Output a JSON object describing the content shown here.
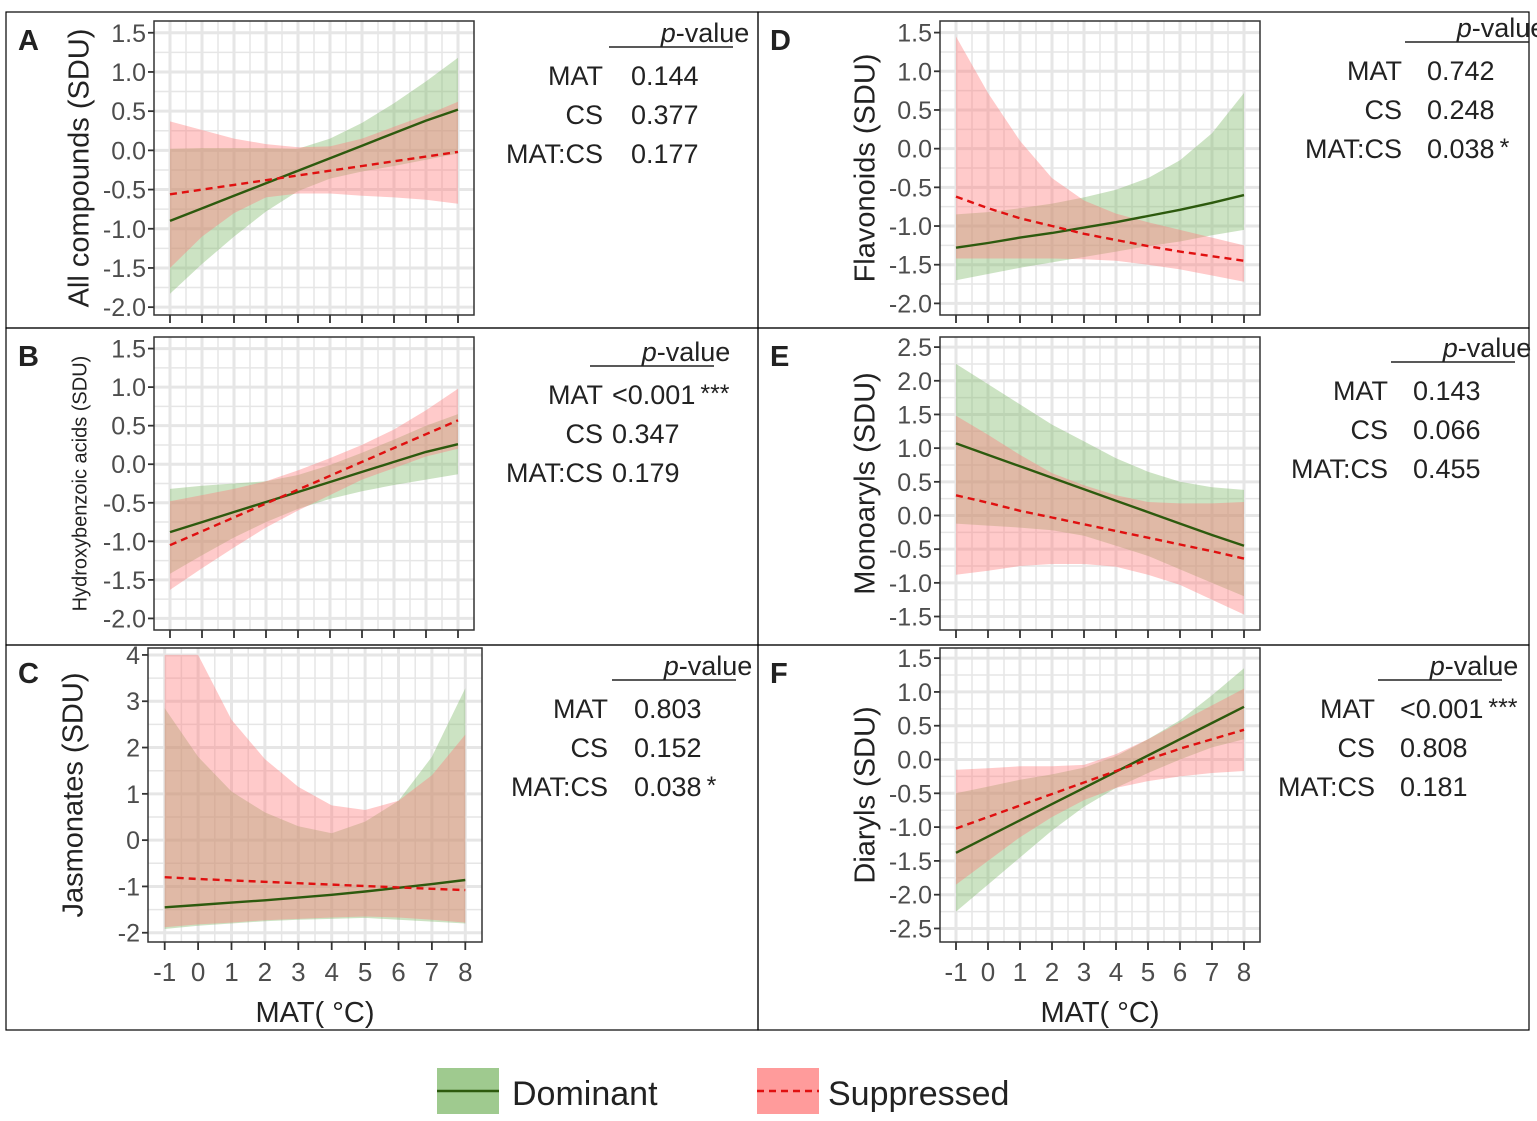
{
  "colors": {
    "dominant_line": "#2d5a0e",
    "dominant_band": "#7fb86a",
    "suppressed_line": "#e01010",
    "suppressed_band": "#ff7a7a",
    "grid": "#e6e6e6",
    "frame": "#333333",
    "text": "#222222",
    "tick_text": "#4d4d4d"
  },
  "figure": {
    "xlabel": "MAT( °C)",
    "pvalue_header": {
      "italic": "p",
      "rest": "-value"
    }
  },
  "legend": {
    "items": [
      {
        "label": "Dominant",
        "series": "dominant",
        "line_style": "solid"
      },
      {
        "label": "Suppressed",
        "series": "suppressed",
        "line_style": "dashed"
      }
    ]
  },
  "chart_data": [
    {
      "panel": "A",
      "type": "line",
      "ylabel": "All compounds (SDU)",
      "xlim": [
        -1.5,
        8.5
      ],
      "x_ticks": [
        -1,
        0,
        1,
        2,
        3,
        4,
        5,
        6,
        7,
        8
      ],
      "x_tick_labels_shown": false,
      "ylim": [
        -2.1,
        1.65
      ],
      "y_ticks": [
        -2.0,
        -1.5,
        -1.0,
        -0.5,
        0.0,
        0.5,
        1.0,
        1.5
      ],
      "y_tick_labels": [
        "-2.0",
        "-1.5",
        "-1.0",
        "-0.5",
        "0.0",
        "0.5",
        "1.0",
        "1.5"
      ],
      "x": [
        -1,
        0,
        1,
        2,
        3,
        4,
        5,
        6,
        7,
        8
      ],
      "series": [
        {
          "name": "Dominant",
          "fit": [
            -0.9,
            -0.74,
            -0.58,
            -0.42,
            -0.26,
            -0.1,
            0.06,
            0.22,
            0.38,
            0.52
          ],
          "lower": [
            -1.83,
            -1.45,
            -1.1,
            -0.78,
            -0.52,
            -0.36,
            -0.27,
            -0.2,
            -0.12,
            -0.04
          ],
          "upper": [
            0.02,
            0.03,
            0.03,
            0.03,
            0.02,
            0.15,
            0.35,
            0.6,
            0.88,
            1.18
          ]
        },
        {
          "name": "Suppressed",
          "fit": [
            -0.56,
            -0.5,
            -0.44,
            -0.38,
            -0.32,
            -0.26,
            -0.2,
            -0.14,
            -0.08,
            -0.02
          ],
          "lower": [
            -1.5,
            -1.1,
            -0.8,
            -0.6,
            -0.55,
            -0.55,
            -0.58,
            -0.6,
            -0.63,
            -0.68
          ],
          "upper": [
            0.37,
            0.26,
            0.15,
            0.08,
            0.04,
            0.05,
            0.15,
            0.3,
            0.45,
            0.62
          ]
        }
      ],
      "pvalues": [
        {
          "term": "MAT",
          "value": "0.144",
          "sig": ""
        },
        {
          "term": "CS",
          "value": "0.377",
          "sig": ""
        },
        {
          "term": "MAT:CS",
          "value": "0.177",
          "sig": ""
        }
      ]
    },
    {
      "panel": "B",
      "type": "line",
      "ylabel": "Hydroxybenzoic acids (SDU)",
      "xlim": [
        -1.5,
        8.5
      ],
      "x_ticks": [
        -1,
        0,
        1,
        2,
        3,
        4,
        5,
        6,
        7,
        8
      ],
      "x_tick_labels_shown": false,
      "ylim": [
        -2.15,
        1.65
      ],
      "y_ticks": [
        -2.0,
        -1.5,
        -1.0,
        -0.5,
        0.0,
        0.5,
        1.0,
        1.5
      ],
      "y_tick_labels": [
        "-2.0",
        "-1.5",
        "-1.0",
        "-0.5",
        "0.0",
        "0.5",
        "1.0",
        "1.5"
      ],
      "x": [
        -1,
        0,
        1,
        2,
        3,
        4,
        5,
        6,
        7,
        8
      ],
      "series": [
        {
          "name": "Dominant",
          "fit": [
            -0.88,
            -0.75,
            -0.62,
            -0.49,
            -0.36,
            -0.23,
            -0.1,
            0.03,
            0.16,
            0.26
          ],
          "lower": [
            -1.42,
            -1.18,
            -0.95,
            -0.75,
            -0.58,
            -0.45,
            -0.35,
            -0.27,
            -0.2,
            -0.13
          ],
          "upper": [
            -0.32,
            -0.28,
            -0.25,
            -0.22,
            -0.14,
            -0.01,
            0.15,
            0.32,
            0.5,
            0.65
          ]
        },
        {
          "name": "Suppressed",
          "fit": [
            -1.05,
            -0.87,
            -0.69,
            -0.51,
            -0.33,
            -0.15,
            0.03,
            0.21,
            0.39,
            0.57
          ],
          "lower": [
            -1.63,
            -1.35,
            -1.08,
            -0.82,
            -0.6,
            -0.4,
            -0.2,
            -0.05,
            0.1,
            0.2
          ],
          "upper": [
            -0.48,
            -0.4,
            -0.32,
            -0.22,
            -0.08,
            0.08,
            0.25,
            0.45,
            0.7,
            0.98
          ]
        }
      ],
      "pvalues": [
        {
          "term": "MAT",
          "value": "<0.001",
          "sig": "***"
        },
        {
          "term": "CS",
          "value": "0.347",
          "sig": ""
        },
        {
          "term": "MAT:CS",
          "value": "0.179",
          "sig": ""
        }
      ]
    },
    {
      "panel": "C",
      "type": "line",
      "ylabel": "Jasmonates (SDU)",
      "xlim": [
        -1.5,
        8.5
      ],
      "x_ticks": [
        -1,
        0,
        1,
        2,
        3,
        4,
        5,
        6,
        7,
        8
      ],
      "x_tick_labels_shown": true,
      "x_tick_labels": [
        "-1",
        "0",
        "1",
        "2",
        "3",
        "4",
        "5",
        "6",
        "7",
        "8"
      ],
      "ylim": [
        -2.2,
        4.15
      ],
      "y_ticks": [
        -2,
        -1,
        0,
        1,
        2,
        3,
        4
      ],
      "y_tick_labels": [
        "-2",
        "-1",
        "0",
        "1",
        "2",
        "3",
        "4"
      ],
      "x": [
        -1,
        0,
        1,
        2,
        3,
        4,
        5,
        6,
        7,
        8
      ],
      "series": [
        {
          "name": "Dominant",
          "fit": [
            -1.45,
            -1.4,
            -1.35,
            -1.3,
            -1.24,
            -1.18,
            -1.11,
            -1.03,
            -0.95,
            -0.86
          ],
          "lower": [
            -1.92,
            -1.85,
            -1.8,
            -1.75,
            -1.72,
            -1.7,
            -1.68,
            -1.72,
            -1.76,
            -1.8
          ],
          "upper": [
            2.85,
            1.8,
            1.05,
            0.6,
            0.3,
            0.15,
            0.4,
            0.85,
            1.8,
            3.28
          ]
        },
        {
          "name": "Suppressed",
          "fit": [
            -0.8,
            -0.84,
            -0.87,
            -0.9,
            -0.93,
            -0.96,
            -0.99,
            -1.02,
            -1.05,
            -1.08
          ],
          "lower": [
            -1.88,
            -1.82,
            -1.78,
            -1.73,
            -1.7,
            -1.67,
            -1.65,
            -1.67,
            -1.72,
            -1.78
          ],
          "upper": [
            4.0,
            4.0,
            2.6,
            1.75,
            1.15,
            0.75,
            0.65,
            0.85,
            1.4,
            2.28
          ]
        }
      ],
      "pvalues": [
        {
          "term": "MAT",
          "value": "0.803",
          "sig": ""
        },
        {
          "term": "CS",
          "value": "0.152",
          "sig": ""
        },
        {
          "term": "MAT:CS",
          "value": "0.038",
          "sig": "*"
        }
      ]
    },
    {
      "panel": "D",
      "type": "line",
      "ylabel": "Flavonoids (SDU)",
      "xlim": [
        -1.5,
        8.5
      ],
      "x_ticks": [
        -1,
        0,
        1,
        2,
        3,
        4,
        5,
        6,
        7,
        8
      ],
      "x_tick_labels_shown": false,
      "ylim": [
        -2.15,
        1.65
      ],
      "y_ticks": [
        -2.0,
        -1.5,
        -1.0,
        -0.5,
        0.0,
        0.5,
        1.0,
        1.5
      ],
      "y_tick_labels": [
        "-2.0",
        "-1.5",
        "-1.0",
        "-0.5",
        "0.0",
        "0.5",
        "1.0",
        "1.5"
      ],
      "x": [
        -1,
        0,
        1,
        2,
        3,
        4,
        5,
        6,
        7,
        8
      ],
      "series": [
        {
          "name": "Dominant",
          "fit": [
            -1.28,
            -1.22,
            -1.15,
            -1.09,
            -1.02,
            -0.95,
            -0.87,
            -0.79,
            -0.7,
            -0.6
          ],
          "lower": [
            -1.7,
            -1.62,
            -1.54,
            -1.47,
            -1.4,
            -1.33,
            -1.26,
            -1.2,
            -1.12,
            -1.05
          ],
          "upper": [
            -0.85,
            -0.82,
            -0.77,
            -0.71,
            -0.63,
            -0.53,
            -0.38,
            -0.15,
            0.2,
            0.72
          ]
        },
        {
          "name": "Suppressed",
          "fit": [
            -0.62,
            -0.77,
            -0.9,
            -1.0,
            -1.1,
            -1.18,
            -1.26,
            -1.33,
            -1.39,
            -1.45
          ],
          "lower": [
            -1.42,
            -1.42,
            -1.42,
            -1.42,
            -1.43,
            -1.45,
            -1.5,
            -1.56,
            -1.64,
            -1.72
          ],
          "upper": [
            1.45,
            0.72,
            0.1,
            -0.38,
            -0.67,
            -0.84,
            -0.95,
            -1.05,
            -1.15,
            -1.25
          ]
        }
      ],
      "pvalues": [
        {
          "term": "MAT",
          "value": "0.742",
          "sig": ""
        },
        {
          "term": "CS",
          "value": "0.248",
          "sig": ""
        },
        {
          "term": "MAT:CS",
          "value": "0.038",
          "sig": "*"
        }
      ]
    },
    {
      "panel": "E",
      "type": "line",
      "ylabel": "Monoaryls (SDU)",
      "xlim": [
        -1.5,
        8.5
      ],
      "x_ticks": [
        -1,
        0,
        1,
        2,
        3,
        4,
        5,
        6,
        7,
        8
      ],
      "x_tick_labels_shown": false,
      "ylim": [
        -1.7,
        2.65
      ],
      "y_ticks": [
        -1.5,
        -1.0,
        -0.5,
        0.0,
        0.5,
        1.0,
        1.5,
        2.0,
        2.5
      ],
      "y_tick_labels": [
        "-1.5",
        "-1.0",
        "-0.5",
        "0.0",
        "0.5",
        "1.0",
        "1.5",
        "2.0",
        "2.5"
      ],
      "x": [
        -1,
        0,
        1,
        2,
        3,
        4,
        5,
        6,
        7,
        8
      ],
      "series": [
        {
          "name": "Dominant",
          "fit": [
            1.07,
            0.9,
            0.73,
            0.56,
            0.39,
            0.22,
            0.05,
            -0.12,
            -0.29,
            -0.45
          ],
          "lower": [
            -0.12,
            -0.15,
            -0.18,
            -0.22,
            -0.3,
            -0.45,
            -0.6,
            -0.8,
            -1.0,
            -1.2
          ],
          "upper": [
            2.25,
            1.95,
            1.65,
            1.35,
            1.1,
            0.85,
            0.65,
            0.5,
            0.42,
            0.38
          ]
        },
        {
          "name": "Suppressed",
          "fit": [
            0.3,
            0.19,
            0.07,
            -0.03,
            -0.13,
            -0.23,
            -0.33,
            -0.43,
            -0.53,
            -0.64
          ],
          "lower": [
            -0.88,
            -0.82,
            -0.75,
            -0.72,
            -0.72,
            -0.76,
            -0.88,
            -1.03,
            -1.25,
            -1.47
          ],
          "upper": [
            1.48,
            1.2,
            0.9,
            0.63,
            0.45,
            0.3,
            0.2,
            0.18,
            0.18,
            0.2
          ]
        }
      ],
      "pvalues": [
        {
          "term": "MAT",
          "value": "0.143",
          "sig": ""
        },
        {
          "term": "CS",
          "value": "0.066",
          "sig": ""
        },
        {
          "term": "MAT:CS",
          "value": "0.455",
          "sig": ""
        }
      ]
    },
    {
      "panel": "F",
      "type": "line",
      "ylabel": "Diaryls (SDU)",
      "xlim": [
        -1.5,
        8.5
      ],
      "x_ticks": [
        -1,
        0,
        1,
        2,
        3,
        4,
        5,
        6,
        7,
        8
      ],
      "x_tick_labels_shown": true,
      "x_tick_labels": [
        "-1",
        "0",
        "1",
        "2",
        "3",
        "4",
        "5",
        "6",
        "7",
        "8"
      ],
      "ylim": [
        -2.7,
        1.65
      ],
      "y_ticks": [
        -2.5,
        -2.0,
        -1.5,
        -1.0,
        -0.5,
        0.0,
        0.5,
        1.0,
        1.5
      ],
      "y_tick_labels": [
        "-2.5",
        "-2.0",
        "-1.5",
        "-1.0",
        "-0.5",
        "0.0",
        "0.5",
        "1.0",
        "1.5"
      ],
      "x": [
        -1,
        0,
        1,
        2,
        3,
        4,
        5,
        6,
        7,
        8
      ],
      "series": [
        {
          "name": "Dominant",
          "fit": [
            -1.38,
            -1.14,
            -0.9,
            -0.66,
            -0.42,
            -0.18,
            0.06,
            0.3,
            0.54,
            0.78
          ],
          "lower": [
            -2.25,
            -1.85,
            -1.45,
            -1.05,
            -0.7,
            -0.42,
            -0.2,
            0.0,
            0.18,
            0.3
          ],
          "upper": [
            -0.5,
            -0.4,
            -0.3,
            -0.22,
            -0.12,
            0.05,
            0.3,
            0.58,
            0.95,
            1.35
          ]
        },
        {
          "name": "Suppressed",
          "fit": [
            -1.02,
            -0.85,
            -0.68,
            -0.51,
            -0.34,
            -0.17,
            0.0,
            0.16,
            0.3,
            0.44
          ],
          "lower": [
            -1.85,
            -1.5,
            -1.15,
            -0.85,
            -0.6,
            -0.42,
            -0.32,
            -0.25,
            -0.2,
            -0.17
          ],
          "upper": [
            -0.15,
            -0.13,
            -0.1,
            -0.1,
            -0.08,
            0.08,
            0.3,
            0.55,
            0.8,
            1.05
          ]
        }
      ],
      "pvalues": [
        {
          "term": "MAT",
          "value": "<0.001",
          "sig": "***"
        },
        {
          "term": "CS",
          "value": "0.808",
          "sig": ""
        },
        {
          "term": "MAT:CS",
          "value": "0.181",
          "sig": ""
        }
      ]
    }
  ]
}
